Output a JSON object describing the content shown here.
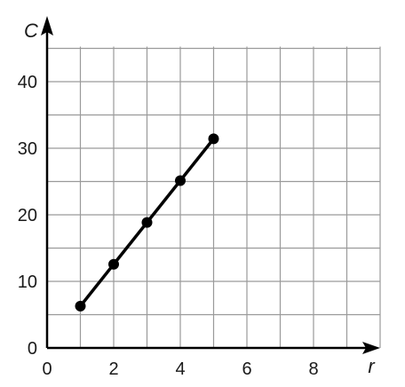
{
  "chart_data": {
    "type": "line",
    "xlabel": "r",
    "ylabel": "C",
    "xlim": [
      0,
      10
    ],
    "ylim": [
      0,
      45
    ],
    "x_tick_labels": [
      "0",
      "2",
      "4",
      "6",
      "8"
    ],
    "y_tick_labels": [
      "0",
      "10",
      "20",
      "30",
      "40"
    ],
    "grid": true,
    "line_color": "#000000",
    "grid_color": "#9a9a9a",
    "series": [
      {
        "x": [
          1,
          2,
          3,
          4,
          5
        ],
        "y": [
          6.28,
          12.57,
          18.85,
          25.13,
          31.42
        ]
      }
    ]
  }
}
